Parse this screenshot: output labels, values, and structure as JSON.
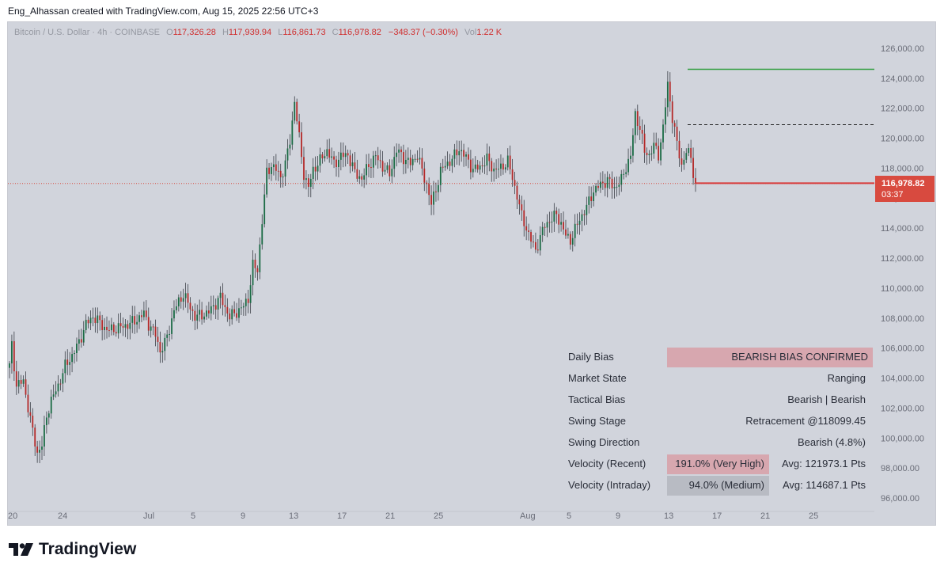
{
  "header": {
    "caption": "Eng_Alhassan created with TradingView.com, Aug 15, 2025 22:56 UTC+3"
  },
  "legend": {
    "symbol": "Bitcoin / U.S. Dollar · 4h · COINBASE",
    "open_label": "O",
    "open": "117,326.28",
    "high_label": "H",
    "high": "117,939.94",
    "low_label": "L",
    "low": "116,861.73",
    "close_label": "C",
    "close": "116,978.82",
    "change": "−348.37 (−0.30%)",
    "vol_label": "Vol",
    "vol": "1.22 K"
  },
  "price_tag": {
    "price": "116,978.82",
    "countdown": "03:37"
  },
  "info_table": {
    "rows": [
      {
        "key": "Daily Bias",
        "value": "BEARISH BIAS CONFIRMED"
      },
      {
        "key": "Market State",
        "value": "Ranging"
      },
      {
        "key": "Tactical Bias",
        "value": "Bearish | Bearish"
      },
      {
        "key": "Swing Stage",
        "value": "Retracement @118099.45"
      },
      {
        "key": "Swing Direction",
        "value": "Bearish (4.8%)"
      },
      {
        "key": "Velocity (Recent)",
        "value": "191.0% (Very High)",
        "avg": "Avg: 121973.1 Pts"
      },
      {
        "key": "Velocity (Intraday)",
        "value": "94.0% (Medium)",
        "avg": "Avg: 114687.1 Pts"
      }
    ]
  },
  "footer": {
    "brand": "TradingView"
  },
  "colors": {
    "up": "#1b6b45",
    "down": "#b42a2a",
    "green_line": "#2e9e3e",
    "red_line": "#d83a3a",
    "background": "#d1d4dc"
  },
  "chart_data": {
    "type": "candlestick",
    "title": "",
    "xlabel": "",
    "ylabel": "",
    "ylim": [
      95000,
      127000
    ],
    "y_ticks": [
      "126,000.00",
      "124,000.00",
      "122,000.00",
      "120,000.00",
      "118,000.00",
      "116,000.00",
      "114,000.00",
      "112,000.00",
      "110,000.00",
      "108,000.00",
      "106,000.00",
      "104,000.00",
      "102,000.00",
      "100,000.00",
      "98,000.00",
      "96,000.00"
    ],
    "x_ticks": [
      "20",
      "24",
      "Jul",
      "5",
      "9",
      "13",
      "17",
      "21",
      "25",
      "Aug",
      "5",
      "9",
      "13",
      "17",
      "21",
      "25"
    ],
    "anchors": [
      [
        0,
        104800
      ],
      [
        1,
        106200
      ],
      [
        3,
        103500
      ],
      [
        6,
        103800
      ],
      [
        9,
        101200
      ],
      [
        12,
        99000
      ],
      [
        14,
        99500
      ],
      [
        16,
        101500
      ],
      [
        18,
        102500
      ],
      [
        21,
        103500
      ],
      [
        24,
        104800
      ],
      [
        27,
        105500
      ],
      [
        30,
        106400
      ],
      [
        33,
        107600
      ],
      [
        36,
        108100
      ],
      [
        39,
        107700
      ],
      [
        42,
        107200
      ],
      [
        46,
        107300
      ],
      [
        50,
        107500
      ],
      [
        54,
        107800
      ],
      [
        58,
        108300
      ],
      [
        60,
        107600
      ],
      [
        63,
        106900
      ],
      [
        65,
        105800
      ],
      [
        67,
        106300
      ],
      [
        69,
        107300
      ],
      [
        71,
        108500
      ],
      [
        73,
        109100
      ],
      [
        75,
        109600
      ],
      [
        77,
        109000
      ],
      [
        80,
        108100
      ],
      [
        83,
        108200
      ],
      [
        86,
        108400
      ],
      [
        89,
        109000
      ],
      [
        91,
        109400
      ],
      [
        93,
        108700
      ],
      [
        95,
        108100
      ],
      [
        98,
        108400
      ],
      [
        101,
        108800
      ],
      [
        103,
        109300
      ],
      [
        105,
        111500
      ],
      [
        107,
        111200
      ],
      [
        109,
        114500
      ],
      [
        111,
        117700
      ],
      [
        113,
        118200
      ],
      [
        115,
        117900
      ],
      [
        117,
        117400
      ],
      [
        119,
        118300
      ],
      [
        121,
        119800
      ],
      [
        123,
        122500
      ],
      [
        125,
        120000
      ],
      [
        127,
        117600
      ],
      [
        129,
        116700
      ],
      [
        131,
        117900
      ],
      [
        134,
        118500
      ],
      [
        137,
        119200
      ],
      [
        140,
        118300
      ],
      [
        143,
        118800
      ],
      [
        146,
        118900
      ],
      [
        149,
        117700
      ],
      [
        152,
        117300
      ],
      [
        155,
        118200
      ],
      [
        158,
        118800
      ],
      [
        161,
        118100
      ],
      [
        164,
        117600
      ],
      [
        167,
        119200
      ],
      [
        170,
        118700
      ],
      [
        173,
        118300
      ],
      [
        176,
        118900
      ],
      [
        178,
        117800
      ],
      [
        180,
        116900
      ],
      [
        182,
        115600
      ],
      [
        184,
        116600
      ],
      [
        186,
        117800
      ],
      [
        188,
        118200
      ],
      [
        191,
        118600
      ],
      [
        194,
        119300
      ],
      [
        197,
        118700
      ],
      [
        200,
        117900
      ],
      [
        203,
        118100
      ],
      [
        206,
        118600
      ],
      [
        209,
        117900
      ],
      [
        212,
        118000
      ],
      [
        215,
        118500
      ],
      [
        217,
        117300
      ],
      [
        219,
        116200
      ],
      [
        221,
        114800
      ],
      [
        223,
        114000
      ],
      [
        225,
        113200
      ],
      [
        227,
        112500
      ],
      [
        229,
        113400
      ],
      [
        231,
        114200
      ],
      [
        233,
        114500
      ],
      [
        236,
        114900
      ],
      [
        238,
        114300
      ],
      [
        240,
        113500
      ],
      [
        242,
        113200
      ],
      [
        244,
        113900
      ],
      [
        246,
        114600
      ],
      [
        249,
        115400
      ],
      [
        252,
        116500
      ],
      [
        255,
        116900
      ],
      [
        258,
        117200
      ],
      [
        261,
        116700
      ],
      [
        264,
        117200
      ],
      [
        266,
        118100
      ],
      [
        268,
        118800
      ],
      [
        270,
        121600
      ],
      [
        272,
        120700
      ],
      [
        274,
        119100
      ],
      [
        276,
        118900
      ],
      [
        278,
        119500
      ],
      [
        280,
        118900
      ],
      [
        282,
        120700
      ],
      [
        284,
        123600
      ],
      [
        286,
        121400
      ],
      [
        288,
        119600
      ],
      [
        290,
        118200
      ],
      [
        292,
        119100
      ],
      [
        294,
        118800
      ],
      [
        295,
        117700
      ],
      [
        296,
        116979
      ]
    ],
    "annotations": {
      "green_level": 124600,
      "dashed_level": 120900,
      "red_level": 117000,
      "last_price": 116978.82
    }
  }
}
